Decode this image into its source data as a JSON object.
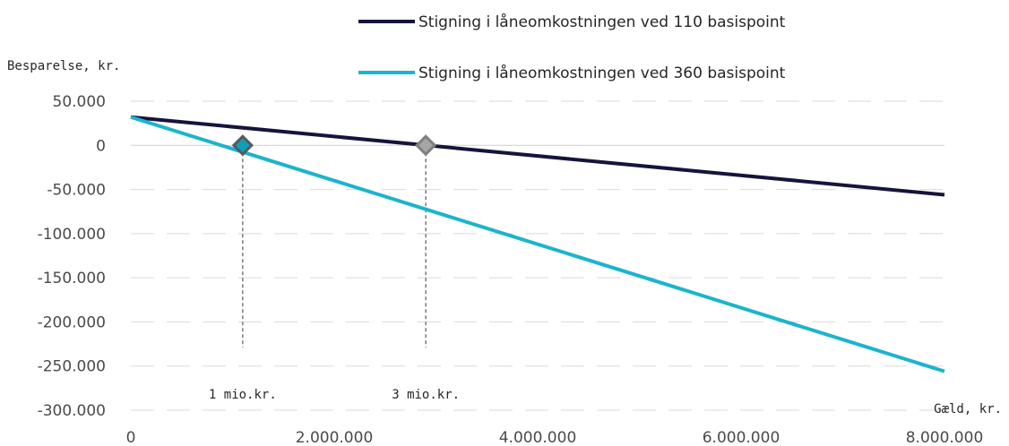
{
  "chart_data": {
    "type": "line",
    "ylabel": "Besparelse, kr.",
    "xlabel": "Gæld, kr.",
    "xlim": [
      0,
      8000000
    ],
    "ylim": [
      -300000,
      50000
    ],
    "xticks": [
      0,
      2000000,
      4000000,
      6000000,
      8000000
    ],
    "xtick_labels": [
      "0",
      "2.000.000",
      "4.000.000",
      "6.000.000",
      "8.000.000"
    ],
    "yticks": [
      50000,
      0,
      -50000,
      -100000,
      -150000,
      -200000,
      -250000,
      -300000
    ],
    "ytick_labels": [
      "50.000",
      "0",
      "-50.000",
      "-100.000",
      "-150.000",
      "-200.000",
      "-250.000",
      "-300.000"
    ],
    "grid": "horizontal dashed",
    "legend_position": "top",
    "series": [
      {
        "name": "Stigning i låneomkostningen ved 110 basispoint",
        "color": "#14143c",
        "x": [
          0,
          8000000
        ],
        "y": [
          32000,
          -56000
        ]
      },
      {
        "name": "Stigning i låneomkostningen ved 360 basispoint",
        "color": "#1ab4cf",
        "x": [
          0,
          8000000
        ],
        "y": [
          32000,
          -256000
        ]
      }
    ],
    "annotations": [
      {
        "label": "1 mio.kr.",
        "x": 1100000,
        "y": 0,
        "marker_color": "#0f9fb8",
        "series": 1
      },
      {
        "label": "3 mio.kr.",
        "x": 2900000,
        "y": 0,
        "marker_color": "#a6a6a6",
        "series": 0
      }
    ]
  }
}
